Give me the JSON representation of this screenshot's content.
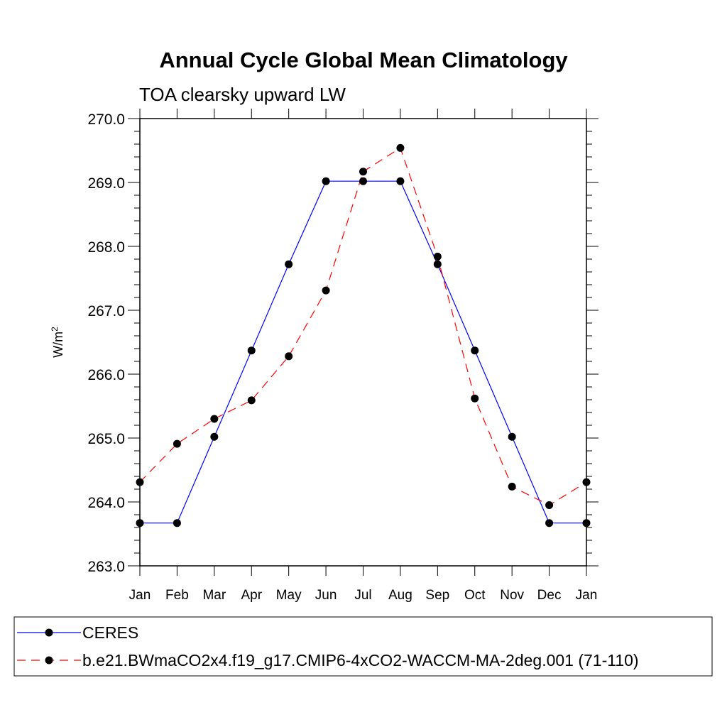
{
  "chart_data": {
    "type": "line",
    "title": "Annual Cycle Global Mean Climatology",
    "subtitle": "TOA clearsky upward LW",
    "ylabel": "W/m",
    "ylabel_sup": "2",
    "xlabel": "",
    "ylim": [
      263.0,
      270.0
    ],
    "y_ticks": [
      "263.0",
      "264.0",
      "265.0",
      "266.0",
      "267.0",
      "268.0",
      "269.0",
      "270.0"
    ],
    "categories": [
      "Jan",
      "Feb",
      "Mar",
      "Apr",
      "May",
      "Jun",
      "Jul",
      "Aug",
      "Sep",
      "Oct",
      "Nov",
      "Dec",
      "Jan"
    ],
    "series": [
      {
        "name": "CERES",
        "color": "#0000ff",
        "dash": "solid",
        "values": [
          263.67,
          263.67,
          265.02,
          266.37,
          267.72,
          269.02,
          269.02,
          269.02,
          267.72,
          266.37,
          265.02,
          263.67,
          263.67
        ]
      },
      {
        "name": "b.e21.BWmaCO2x4.f19_g17.CMIP6-4xCO2-WACCM-MA-2deg.001 (71-110)",
        "color": "#ff0000",
        "dash": "dashed",
        "values": [
          264.31,
          264.91,
          265.3,
          265.59,
          266.28,
          267.31,
          269.17,
          269.54,
          267.84,
          265.62,
          264.24,
          263.95,
          264.31
        ]
      }
    ],
    "legend_position": "bottom-left"
  }
}
